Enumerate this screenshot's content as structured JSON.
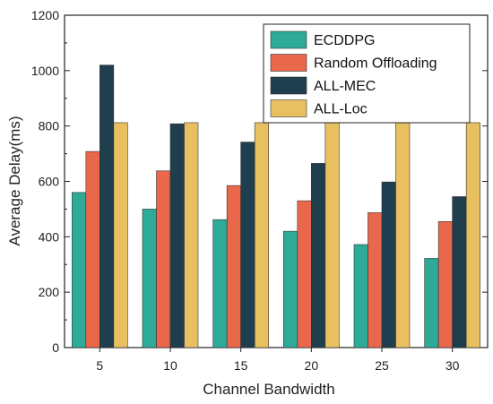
{
  "chart_data": {
    "type": "bar",
    "xlabel": "Channel Bandwidth",
    "ylabel": "Average Delay(ms)",
    "ylim": [
      0,
      1200
    ],
    "yticks": [
      0,
      200,
      400,
      600,
      800,
      1000,
      1200
    ],
    "categories": [
      "5",
      "10",
      "15",
      "20",
      "25",
      "30"
    ],
    "legend_position": "top-right",
    "grid": false,
    "series": [
      {
        "name": "ECDDPG",
        "color": "#2eab98",
        "values": [
          560,
          500,
          462,
          420,
          372,
          322
        ]
      },
      {
        "name": "Random Offloading",
        "color": "#e9684b",
        "values": [
          708,
          638,
          585,
          530,
          487,
          455
        ]
      },
      {
        "name": "ALL-MEC",
        "color": "#1f3e4e",
        "values": [
          1020,
          808,
          742,
          665,
          598,
          545
        ]
      },
      {
        "name": "ALL-Loc",
        "color": "#e8c061",
        "values": [
          812,
          812,
          812,
          812,
          812,
          812
        ]
      }
    ]
  }
}
